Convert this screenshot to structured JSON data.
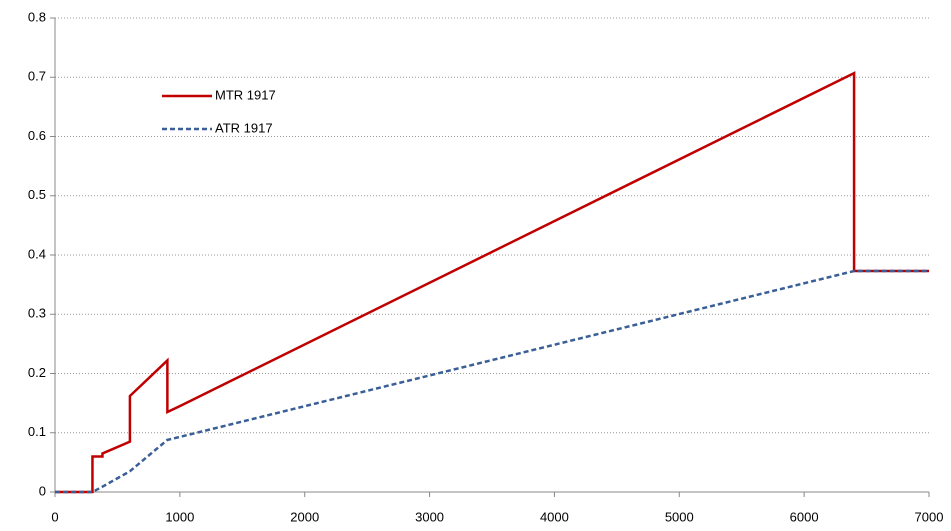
{
  "chart_data": {
    "type": "line",
    "x": [
      0,
      300,
      300,
      380,
      380,
      600,
      600,
      900,
      900,
      1000,
      6400,
      6400,
      7000
    ],
    "series": [
      {
        "name": "MTR 1917",
        "color": "#c00000",
        "line_style": "solid",
        "values": [
          0,
          0,
          0.06,
          0.06,
          0.065,
          0.085,
          0.162,
          0.222,
          0.135,
          0.145,
          0.707,
          0.373,
          0.373
        ]
      },
      {
        "name": "ATR 1917",
        "color": "#3a5f96",
        "line_style": "dashed",
        "values": [
          0,
          0,
          0,
          0.009,
          0.009,
          0.035,
          0.035,
          0.088,
          0.088,
          0.093,
          0.373,
          0.373,
          0.373
        ]
      }
    ],
    "xlim": [
      0,
      7000
    ],
    "xticks": [
      0,
      1000,
      2000,
      3000,
      4000,
      5000,
      6000,
      7000
    ],
    "ylim": [
      0,
      0.8
    ],
    "yticks": [
      0,
      0.1,
      0.2,
      0.3,
      0.4,
      0.5,
      0.6,
      0.7,
      0.8
    ],
    "grid": true,
    "legend": "upper-left"
  }
}
